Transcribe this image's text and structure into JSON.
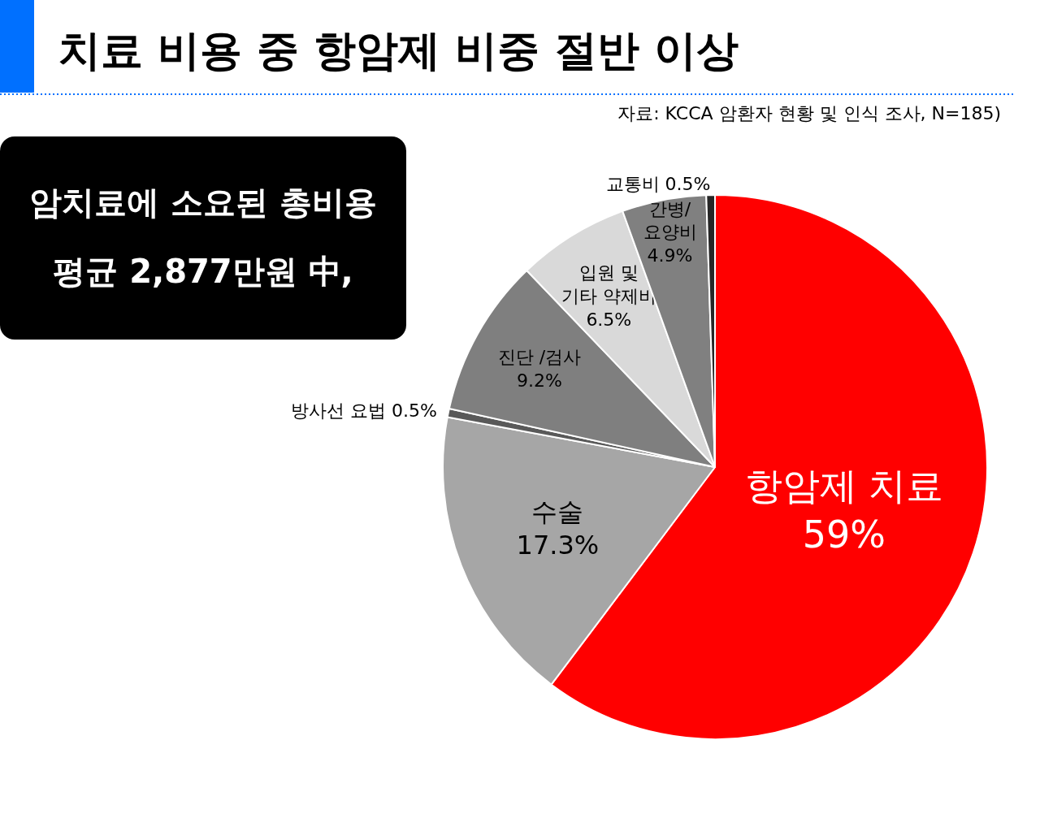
{
  "chart_data": {
    "type": "pie",
    "title": "치료 비용 중 항암제 비중 절반 이상",
    "categories": [
      "항암제 치료",
      "수술",
      "방사선 요법",
      "진단 /검사",
      "입원 및 기타 약제비",
      "간병/ 요양비",
      "교통비"
    ],
    "values": [
      59,
      17.3,
      0.5,
      9.2,
      6.5,
      4.9,
      0.5
    ],
    "value_labels": [
      "59%",
      "17.3%",
      "0.5%",
      "9.2%",
      "6.5%",
      "4.9%",
      "0.5%"
    ],
    "colors": [
      "#ff0000",
      "#a6a6a6",
      "#595959",
      "#7f7f7f",
      "#d9d9d9",
      "#808080",
      "#262626"
    ],
    "annotations": [
      "자료: KCCA 암환자 현황 및 인식 조사, N=185)",
      "암치료에 소요된 총비용",
      "평균 2,877만원 中,"
    ]
  }
}
